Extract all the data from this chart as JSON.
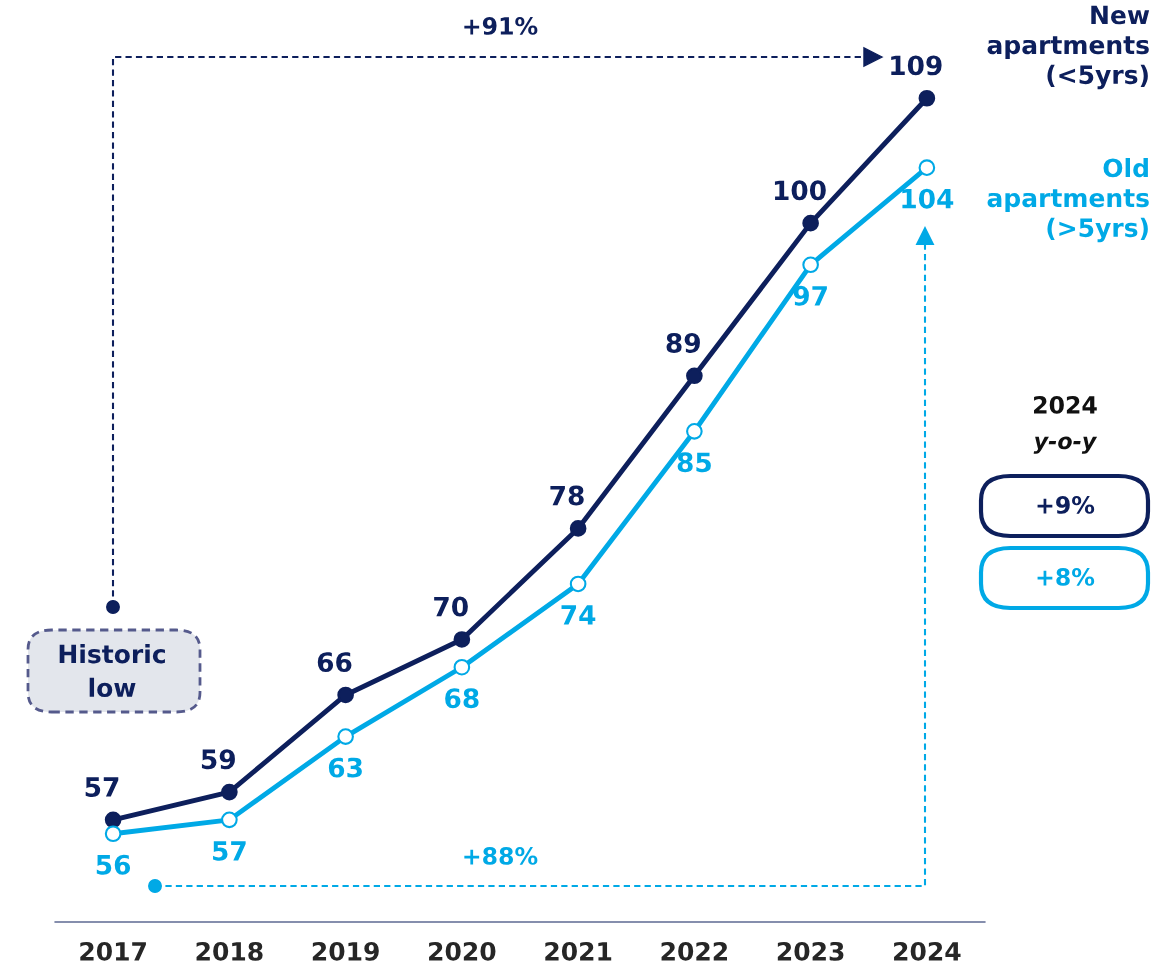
{
  "chart_data": {
    "type": "line",
    "categories": [
      "2017",
      "2018",
      "2019",
      "2020",
      "2021",
      "2022",
      "2023",
      "2024"
    ],
    "series": [
      {
        "name": "New apartments (<5yrs)",
        "color": "#0d1f5c",
        "values": [
          57,
          59,
          66,
          70,
          78,
          89,
          100,
          109
        ]
      },
      {
        "name": "Old apartments (>5yrs)",
        "color": "#00a9e6",
        "values": [
          56,
          57,
          63,
          68,
          74,
          85,
          97,
          104
        ]
      }
    ],
    "tick_labels": "x",
    "data_labels": true,
    "marker": "circle",
    "line_style": "solid",
    "grid": false,
    "legend": false,
    "annotations": [
      "+91%",
      "Historic low",
      "+88%",
      "2024",
      "y-o-y",
      "+9%",
      "+8%"
    ]
  }
}
